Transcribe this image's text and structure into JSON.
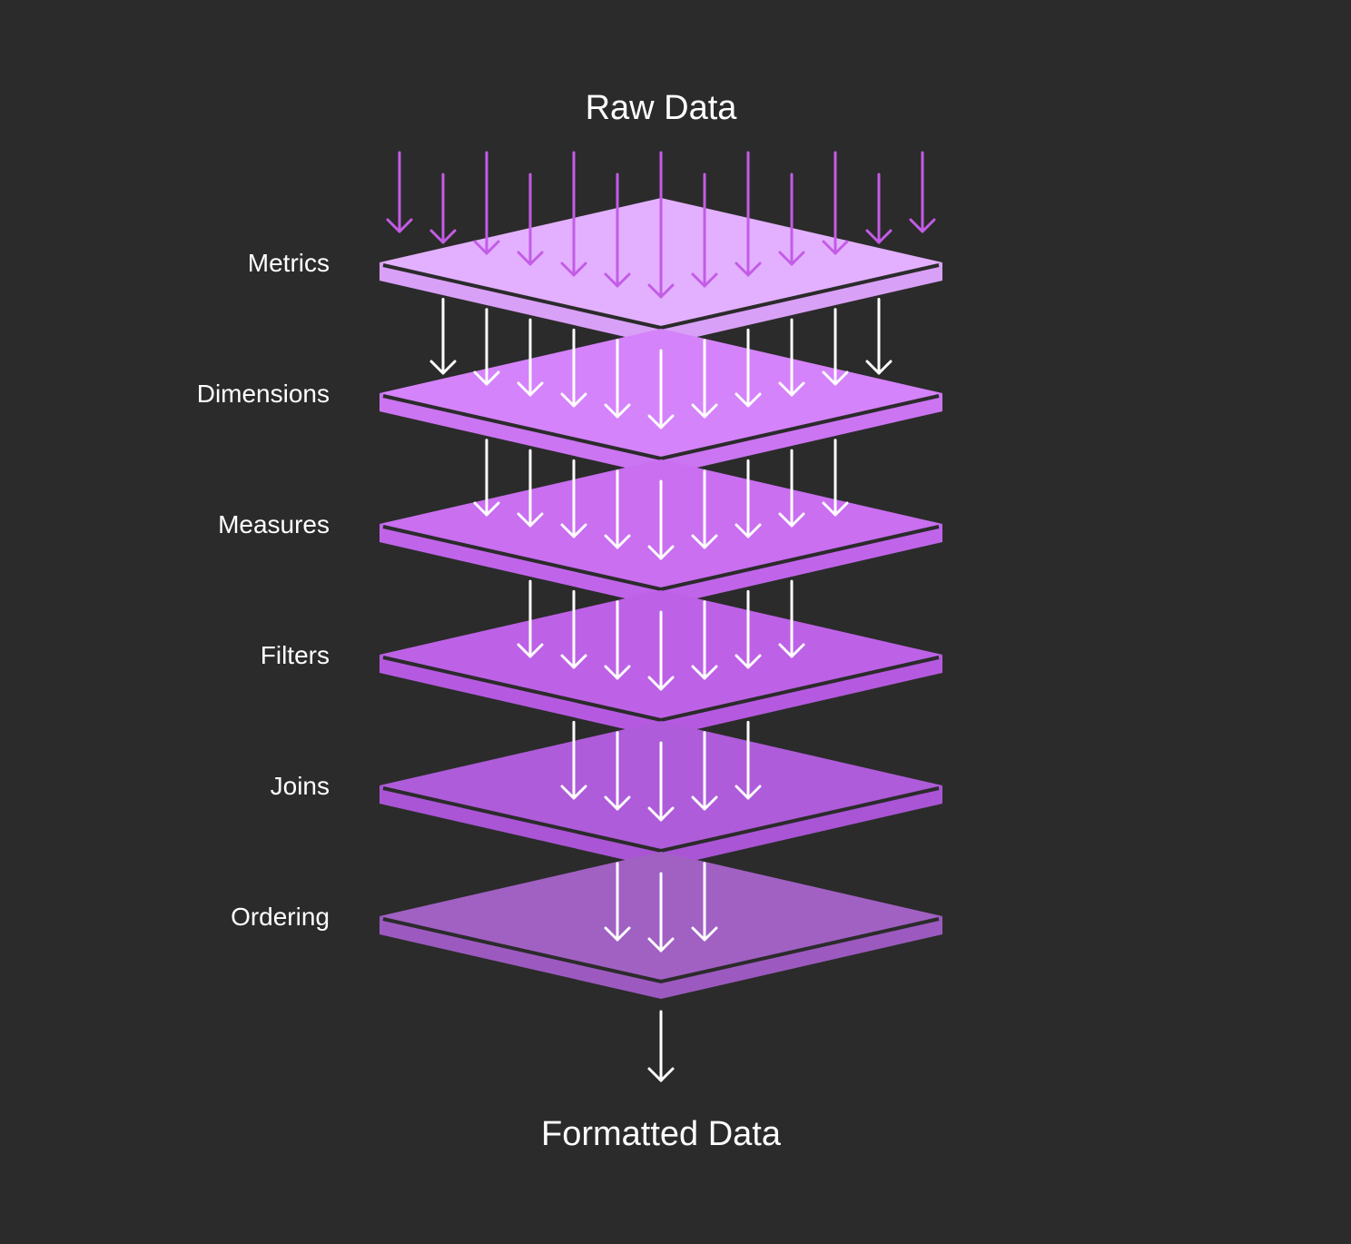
{
  "diagram": {
    "input_label": "Raw Data",
    "output_label": "Formatted Data",
    "input_arrow_color": "#c35ce6",
    "flow_arrow_color": "#ffffff",
    "edge_color": "#2b2b2b",
    "layers": [
      {
        "label": "Metrics",
        "top_color": "#e3b0ff",
        "side_color": "#d9a0f7",
        "arrows_entering": 13
      },
      {
        "label": "Dimensions",
        "top_color": "#d583fa",
        "side_color": "#cb75f2",
        "arrows_entering": 11
      },
      {
        "label": "Measures",
        "top_color": "#c96ff0",
        "side_color": "#c065ea",
        "arrows_entering": 9
      },
      {
        "label": "Filters",
        "top_color": "#bd62e6",
        "side_color": "#b55ae0",
        "arrows_entering": 7
      },
      {
        "label": "Joins",
        "top_color": "#ae5cd9",
        "side_color": "#a955d5",
        "arrows_entering": 5
      },
      {
        "label": "Ordering",
        "top_color": "#a161c3",
        "side_color": "#9c5ac0",
        "arrows_entering": 3
      }
    ],
    "output_arrows": 1
  }
}
